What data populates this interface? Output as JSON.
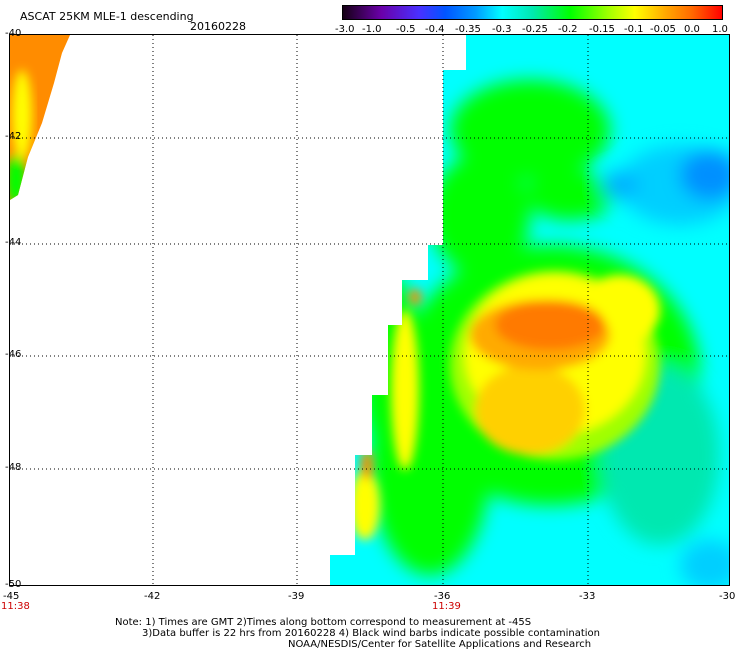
{
  "header": {
    "title": "ASCAT 25KM MLE-1 descending",
    "date": "20160228"
  },
  "colorbar": {
    "ticks": [
      "-3.0",
      "-1.0",
      "-0.5",
      "-0.4",
      "-0.35",
      "-0.3",
      "-0.25",
      "-0.2",
      "-0.15",
      "-0.1",
      "-0.05",
      "0.0",
      "1.0"
    ]
  },
  "map": {
    "lat_labels": [
      "-40",
      "-42",
      "-44",
      "-46",
      "-48",
      "-50"
    ],
    "lon_labels": [
      "-45",
      "-42",
      "-39",
      "-36",
      "-33",
      "-30"
    ],
    "time_labels": [
      "11:38",
      "11:39"
    ],
    "colors": {
      "orange": "#ff8c00",
      "deep_orange": "#ff7000",
      "yellow": "#ffff00",
      "green": "#00ff00",
      "cyan": "#00ffff",
      "blue": "#0090ff"
    }
  },
  "notes": {
    "line1": "Note: 1) Times are GMT 2)Times along bottom correspond to measurement at -45S",
    "line2": "3)Data buffer is 22 hrs from 20160228 4) Black wind barbs indicate possible contamination",
    "line3": "NOAA/NESDIS/Center for Satellite Applications and Research"
  }
}
